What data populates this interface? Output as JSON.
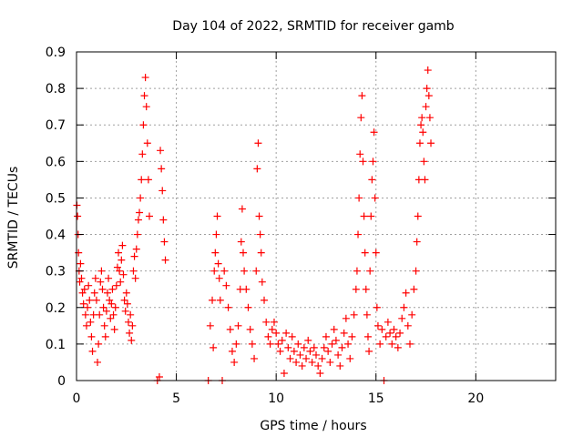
{
  "chart_data": {
    "type": "scatter",
    "title": "Day 104 of 2022, SRMTID for receiver gamb",
    "xlabel": "GPS time / hours",
    "ylabel": "SRMTID / TECUs",
    "xlim": [
      0,
      24
    ],
    "ylim": [
      0,
      0.9
    ],
    "xticks": [
      0,
      5,
      10,
      15,
      20
    ],
    "yticks": [
      0,
      0.1,
      0.2,
      0.3,
      0.4,
      0.5,
      0.6,
      0.7,
      0.8,
      0.9
    ],
    "xtick_labels": [
      "0",
      "5",
      "10",
      "15",
      "20"
    ],
    "ytick_labels": [
      "0",
      "0.1",
      "0.2",
      "0.3",
      "0.4",
      "0.5",
      "0.6",
      "0.7",
      "0.8",
      "0.9"
    ],
    "grid": true,
    "marker": "+",
    "color": "#ff0000",
    "points": [
      [
        0.02,
        0.48
      ],
      [
        0.05,
        0.45
      ],
      [
        0.08,
        0.4
      ],
      [
        0.1,
        0.35
      ],
      [
        0.13,
        0.3
      ],
      [
        0.16,
        0.27
      ],
      [
        0.2,
        0.32
      ],
      [
        0.25,
        0.28
      ],
      [
        0.3,
        0.24
      ],
      [
        0.35,
        0.21
      ],
      [
        0.4,
        0.25
      ],
      [
        0.45,
        0.18
      ],
      [
        0.5,
        0.15
      ],
      [
        0.55,
        0.2
      ],
      [
        0.6,
        0.26
      ],
      [
        0.65,
        0.22
      ],
      [
        0.7,
        0.16
      ],
      [
        0.75,
        0.12
      ],
      [
        0.8,
        0.08
      ],
      [
        0.85,
        0.18
      ],
      [
        0.9,
        0.24
      ],
      [
        0.95,
        0.28
      ],
      [
        1.0,
        0.22
      ],
      [
        1.05,
        0.05
      ],
      [
        1.1,
        0.1
      ],
      [
        1.15,
        0.18
      ],
      [
        1.2,
        0.27
      ],
      [
        1.25,
        0.3
      ],
      [
        1.3,
        0.25
      ],
      [
        1.35,
        0.2
      ],
      [
        1.4,
        0.15
      ],
      [
        1.45,
        0.12
      ],
      [
        1.5,
        0.19
      ],
      [
        1.55,
        0.24
      ],
      [
        1.6,
        0.28
      ],
      [
        1.65,
        0.22
      ],
      [
        1.7,
        0.17
      ],
      [
        1.75,
        0.21
      ],
      [
        1.8,
        0.25
      ],
      [
        1.85,
        0.18
      ],
      [
        1.9,
        0.14
      ],
      [
        1.95,
        0.2
      ],
      [
        2.0,
        0.26
      ],
      [
        2.05,
        0.31
      ],
      [
        2.1,
        0.35
      ],
      [
        2.15,
        0.3
      ],
      [
        2.2,
        0.27
      ],
      [
        2.25,
        0.33
      ],
      [
        2.3,
        0.37
      ],
      [
        2.35,
        0.29
      ],
      [
        2.4,
        0.22
      ],
      [
        2.45,
        0.19
      ],
      [
        2.5,
        0.24
      ],
      [
        2.55,
        0.21
      ],
      [
        2.6,
        0.16
      ],
      [
        2.65,
        0.13
      ],
      [
        2.7,
        0.18
      ],
      [
        2.75,
        0.11
      ],
      [
        2.8,
        0.15
      ],
      [
        2.85,
        0.3
      ],
      [
        2.9,
        0.34
      ],
      [
        2.95,
        0.28
      ],
      [
        3.0,
        0.36
      ],
      [
        3.05,
        0.4
      ],
      [
        3.1,
        0.44
      ],
      [
        3.15,
        0.46
      ],
      [
        3.2,
        0.5
      ],
      [
        3.25,
        0.55
      ],
      [
        3.3,
        0.62
      ],
      [
        3.35,
        0.7
      ],
      [
        3.4,
        0.78
      ],
      [
        3.45,
        0.83
      ],
      [
        3.5,
        0.75
      ],
      [
        3.55,
        0.65
      ],
      [
        3.6,
        0.55
      ],
      [
        3.65,
        0.45
      ],
      [
        4.05,
        0.0
      ],
      [
        4.15,
        0.01
      ],
      [
        4.2,
        0.63
      ],
      [
        4.25,
        0.58
      ],
      [
        4.3,
        0.52
      ],
      [
        4.35,
        0.44
      ],
      [
        4.4,
        0.38
      ],
      [
        4.45,
        0.33
      ],
      [
        6.6,
        0.0
      ],
      [
        6.7,
        0.15
      ],
      [
        6.8,
        0.22
      ],
      [
        6.85,
        0.09
      ],
      [
        6.9,
        0.3
      ],
      [
        6.95,
        0.35
      ],
      [
        7.0,
        0.4
      ],
      [
        7.05,
        0.45
      ],
      [
        7.1,
        0.32
      ],
      [
        7.15,
        0.28
      ],
      [
        7.2,
        0.22
      ],
      [
        7.3,
        0.0
      ],
      [
        7.4,
        0.3
      ],
      [
        7.5,
        0.26
      ],
      [
        7.6,
        0.2
      ],
      [
        7.7,
        0.14
      ],
      [
        7.8,
        0.08
      ],
      [
        7.9,
        0.05
      ],
      [
        8.0,
        0.1
      ],
      [
        8.1,
        0.15
      ],
      [
        8.2,
        0.25
      ],
      [
        8.25,
        0.38
      ],
      [
        8.3,
        0.47
      ],
      [
        8.35,
        0.35
      ],
      [
        8.4,
        0.3
      ],
      [
        8.5,
        0.25
      ],
      [
        8.6,
        0.2
      ],
      [
        8.7,
        0.14
      ],
      [
        8.8,
        0.1
      ],
      [
        8.9,
        0.06
      ],
      [
        9.0,
        0.3
      ],
      [
        9.05,
        0.58
      ],
      [
        9.1,
        0.65
      ],
      [
        9.15,
        0.45
      ],
      [
        9.2,
        0.4
      ],
      [
        9.25,
        0.35
      ],
      [
        9.3,
        0.27
      ],
      [
        9.4,
        0.22
      ],
      [
        9.5,
        0.16
      ],
      [
        9.6,
        0.12
      ],
      [
        9.7,
        0.1
      ],
      [
        9.8,
        0.14
      ],
      [
        9.9,
        0.16
      ],
      [
        10.0,
        0.13
      ],
      [
        10.1,
        0.1
      ],
      [
        10.2,
        0.08
      ],
      [
        10.3,
        0.11
      ],
      [
        10.4,
        0.02
      ],
      [
        10.5,
        0.13
      ],
      [
        10.6,
        0.09
      ],
      [
        10.7,
        0.06
      ],
      [
        10.8,
        0.12
      ],
      [
        10.9,
        0.08
      ],
      [
        11.0,
        0.05
      ],
      [
        11.1,
        0.1
      ],
      [
        11.2,
        0.07
      ],
      [
        11.3,
        0.04
      ],
      [
        11.4,
        0.09
      ],
      [
        11.5,
        0.06
      ],
      [
        11.6,
        0.11
      ],
      [
        11.7,
        0.08
      ],
      [
        11.8,
        0.05
      ],
      [
        11.9,
        0.09
      ],
      [
        12.0,
        0.07
      ],
      [
        12.1,
        0.04
      ],
      [
        12.2,
        0.02
      ],
      [
        12.3,
        0.06
      ],
      [
        12.4,
        0.09
      ],
      [
        12.5,
        0.12
      ],
      [
        12.6,
        0.08
      ],
      [
        12.7,
        0.05
      ],
      [
        12.8,
        0.1
      ],
      [
        12.9,
        0.14
      ],
      [
        13.0,
        0.11
      ],
      [
        13.1,
        0.07
      ],
      [
        13.2,
        0.04
      ],
      [
        13.3,
        0.09
      ],
      [
        13.4,
        0.13
      ],
      [
        13.5,
        0.17
      ],
      [
        13.6,
        0.1
      ],
      [
        13.7,
        0.06
      ],
      [
        13.8,
        0.12
      ],
      [
        13.9,
        0.18
      ],
      [
        14.0,
        0.25
      ],
      [
        14.05,
        0.3
      ],
      [
        14.1,
        0.4
      ],
      [
        14.15,
        0.5
      ],
      [
        14.2,
        0.62
      ],
      [
        14.25,
        0.72
      ],
      [
        14.3,
        0.78
      ],
      [
        14.35,
        0.6
      ],
      [
        14.4,
        0.45
      ],
      [
        14.45,
        0.35
      ],
      [
        14.5,
        0.25
      ],
      [
        14.55,
        0.18
      ],
      [
        14.6,
        0.12
      ],
      [
        14.65,
        0.08
      ],
      [
        14.7,
        0.3
      ],
      [
        14.75,
        0.45
      ],
      [
        14.8,
        0.55
      ],
      [
        14.85,
        0.6
      ],
      [
        14.9,
        0.68
      ],
      [
        14.95,
        0.5
      ],
      [
        15.0,
        0.35
      ],
      [
        15.05,
        0.2
      ],
      [
        15.1,
        0.15
      ],
      [
        15.2,
        0.1
      ],
      [
        15.3,
        0.14
      ],
      [
        15.4,
        0.0
      ],
      [
        15.5,
        0.12
      ],
      [
        15.6,
        0.16
      ],
      [
        15.7,
        0.13
      ],
      [
        15.8,
        0.1
      ],
      [
        15.9,
        0.14
      ],
      [
        16.0,
        0.12
      ],
      [
        16.1,
        0.09
      ],
      [
        16.2,
        0.13
      ],
      [
        16.3,
        0.17
      ],
      [
        16.4,
        0.2
      ],
      [
        16.5,
        0.24
      ],
      [
        16.6,
        0.15
      ],
      [
        16.7,
        0.1
      ],
      [
        16.8,
        0.18
      ],
      [
        16.9,
        0.25
      ],
      [
        17.0,
        0.3
      ],
      [
        17.05,
        0.38
      ],
      [
        17.1,
        0.45
      ],
      [
        17.15,
        0.55
      ],
      [
        17.2,
        0.65
      ],
      [
        17.25,
        0.7
      ],
      [
        17.3,
        0.72
      ],
      [
        17.35,
        0.68
      ],
      [
        17.4,
        0.6
      ],
      [
        17.45,
        0.55
      ],
      [
        17.5,
        0.75
      ],
      [
        17.55,
        0.8
      ],
      [
        17.6,
        0.85
      ],
      [
        17.65,
        0.78
      ],
      [
        17.7,
        0.72
      ],
      [
        17.75,
        0.65
      ]
    ]
  }
}
